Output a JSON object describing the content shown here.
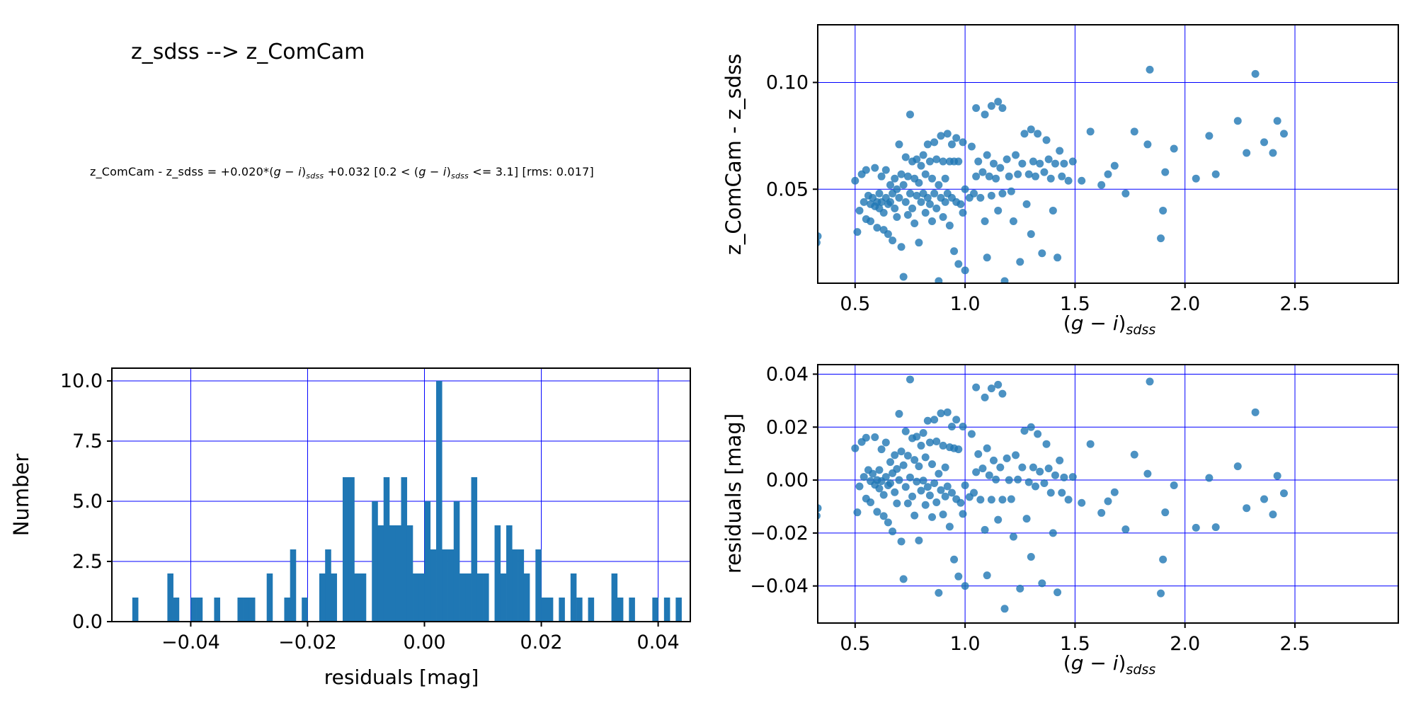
{
  "header": {
    "title": "z_sdss --> z_ComCam",
    "equation_parts": [
      [
        "n",
        "z_ComCam - z_sdss = +0.020*("
      ],
      [
        "i",
        "g − i"
      ],
      [
        "n",
        ")"
      ],
      [
        "s",
        "sdss"
      ],
      [
        "n",
        " +0.032  [0.2 < ("
      ],
      [
        "i",
        "g − i"
      ],
      [
        "n",
        ")"
      ],
      [
        "s",
        "sdss"
      ],
      [
        "n",
        " <= 3.1]  [rms: 0.017]"
      ]
    ]
  },
  "fit": {
    "slope": 0.02,
    "intercept": 0.032,
    "valid_range": [
      0.2,
      3.1
    ],
    "rms": 0.017
  },
  "colors": {
    "points": "#1f77b4",
    "bars": "#1f77b4",
    "grid": "#0000ff",
    "axis": "#000000"
  },
  "labels": {
    "color_axis_parts": [
      [
        "n",
        "("
      ],
      [
        "i",
        "g − i"
      ],
      [
        "n",
        ")"
      ],
      [
        "s",
        "sdss"
      ]
    ],
    "top_scatter_ylabel": "z_ComCam - z_sdss",
    "residual_ylabel": "residuals [mag]",
    "hist_xlabel": "residuals [mag]",
    "hist_ylabel": "Number"
  },
  "chart_data": [
    {
      "id": "dmag-vs-color-scatter",
      "type": "scatter",
      "xlabel": "(g − i)_sdss",
      "ylabel": "z_ComCam - z_sdss",
      "xlim": [
        0.33,
        2.97
      ],
      "ylim": [
        0.006,
        0.127
      ],
      "xticks": [
        0.5,
        1.0,
        1.5,
        2.0,
        2.5
      ],
      "xtick_labels": [
        "0.5",
        "1.0",
        "1.5",
        "2.0",
        "2.5"
      ],
      "yticks": [
        0.05,
        0.1
      ],
      "ytick_labels": [
        "0.05",
        "0.10"
      ],
      "grid": true,
      "points": [
        [
          0.325,
          0.025
        ],
        [
          0.33,
          0.028
        ],
        [
          0.5,
          0.054
        ],
        [
          0.51,
          0.03
        ],
        [
          0.52,
          0.04
        ],
        [
          0.53,
          0.057
        ],
        [
          0.54,
          0.044
        ],
        [
          0.55,
          0.036
        ],
        [
          0.55,
          0.059
        ],
        [
          0.56,
          0.047
        ],
        [
          0.57,
          0.043
        ],
        [
          0.57,
          0.035
        ],
        [
          0.58,
          0.046
        ],
        [
          0.59,
          0.042
        ],
        [
          0.59,
          0.06
        ],
        [
          0.6,
          0.044
        ],
        [
          0.6,
          0.032
        ],
        [
          0.61,
          0.048
        ],
        [
          0.61,
          0.041
        ],
        [
          0.62,
          0.056
        ],
        [
          0.62,
          0.044
        ],
        [
          0.63,
          0.039
        ],
        [
          0.63,
          0.031
        ],
        [
          0.64,
          0.059
        ],
        [
          0.64,
          0.046
        ],
        [
          0.65,
          0.043
        ],
        [
          0.65,
          0.029
        ],
        [
          0.66,
          0.052
        ],
        [
          0.66,
          0.044
        ],
        [
          0.67,
          0.048
        ],
        [
          0.67,
          0.026
        ],
        [
          0.68,
          0.055
        ],
        [
          0.68,
          0.041
        ],
        [
          0.69,
          0.05
        ],
        [
          0.69,
          0.037
        ],
        [
          0.7,
          0.071
        ],
        [
          0.7,
          0.046
        ],
        [
          0.71,
          0.057
        ],
        [
          0.71,
          0.023
        ],
        [
          0.72,
          0.052
        ],
        [
          0.72,
          0.009
        ],
        [
          0.73,
          0.065
        ],
        [
          0.73,
          0.044
        ],
        [
          0.74,
          0.056
        ],
        [
          0.74,
          0.038
        ],
        [
          0.75,
          0.085
        ],
        [
          0.75,
          0.048
        ],
        [
          0.76,
          0.063
        ],
        [
          0.76,
          0.041
        ],
        [
          0.77,
          0.055
        ],
        [
          0.77,
          0.034
        ],
        [
          0.78,
          0.064
        ],
        [
          0.78,
          0.047
        ],
        [
          0.79,
          0.053
        ],
        [
          0.79,
          0.025
        ],
        [
          0.8,
          0.061
        ],
        [
          0.8,
          0.044
        ],
        [
          0.81,
          0.066
        ],
        [
          0.81,
          0.048
        ],
        [
          0.82,
          0.057
        ],
        [
          0.82,
          0.039
        ],
        [
          0.83,
          0.071
        ],
        [
          0.83,
          0.046
        ],
        [
          0.84,
          0.063
        ],
        [
          0.84,
          0.043
        ],
        [
          0.85,
          0.055
        ],
        [
          0.85,
          0.035
        ],
        [
          0.86,
          0.072
        ],
        [
          0.86,
          0.048
        ],
        [
          0.87,
          0.064
        ],
        [
          0.87,
          0.041
        ],
        [
          0.88,
          0.052
        ],
        [
          0.88,
          0.007
        ],
        [
          0.89,
          0.075
        ],
        [
          0.89,
          0.046
        ],
        [
          0.9,
          0.063
        ],
        [
          0.9,
          0.037
        ],
        [
          0.91,
          0.055
        ],
        [
          0.91,
          0.044
        ],
        [
          0.92,
          0.076
        ],
        [
          0.92,
          0.048
        ],
        [
          0.93,
          0.063
        ],
        [
          0.93,
          0.033
        ],
        [
          0.94,
          0.071
        ],
        [
          0.94,
          0.046
        ],
        [
          0.95,
          0.063
        ],
        [
          0.95,
          0.021
        ],
        [
          0.96,
          0.074
        ],
        [
          0.96,
          0.044
        ],
        [
          0.97,
          0.063
        ],
        [
          0.97,
          0.015
        ],
        [
          0.98,
          0.043
        ],
        [
          0.99,
          0.072
        ],
        [
          0.99,
          0.039
        ],
        [
          1.0,
          0.05
        ],
        [
          1.0,
          0.012
        ],
        [
          1.02,
          0.046
        ],
        [
          1.03,
          0.07
        ],
        [
          1.04,
          0.048
        ],
        [
          1.05,
          0.088
        ],
        [
          1.05,
          0.056
        ],
        [
          1.06,
          0.063
        ],
        [
          1.07,
          0.046
        ],
        [
          1.08,
          0.058
        ],
        [
          1.09,
          0.085
        ],
        [
          1.09,
          0.035
        ],
        [
          1.1,
          0.066
        ],
        [
          1.1,
          0.018
        ],
        [
          1.11,
          0.056
        ],
        [
          1.12,
          0.089
        ],
        [
          1.12,
          0.047
        ],
        [
          1.13,
          0.062
        ],
        [
          1.14,
          0.055
        ],
        [
          1.15,
          0.091
        ],
        [
          1.15,
          0.04
        ],
        [
          1.16,
          0.06
        ],
        [
          1.17,
          0.088
        ],
        [
          1.17,
          0.048
        ],
        [
          1.18,
          0.007
        ],
        [
          1.19,
          0.064
        ],
        [
          1.2,
          0.056
        ],
        [
          1.21,
          0.049
        ],
        [
          1.22,
          0.035
        ],
        [
          1.23,
          0.066
        ],
        [
          1.24,
          0.057
        ],
        [
          1.25,
          0.016
        ],
        [
          1.26,
          0.062
        ],
        [
          1.27,
          0.076
        ],
        [
          1.28,
          0.043
        ],
        [
          1.29,
          0.057
        ],
        [
          1.3,
          0.078
        ],
        [
          1.3,
          0.029
        ],
        [
          1.31,
          0.063
        ],
        [
          1.32,
          0.056
        ],
        [
          1.33,
          0.076
        ],
        [
          1.34,
          0.062
        ],
        [
          1.35,
          0.02
        ],
        [
          1.36,
          0.058
        ],
        [
          1.37,
          0.073
        ],
        [
          1.38,
          0.064
        ],
        [
          1.39,
          0.055
        ],
        [
          1.4,
          0.04
        ],
        [
          1.41,
          0.062
        ],
        [
          1.42,
          0.018
        ],
        [
          1.43,
          0.068
        ],
        [
          1.44,
          0.056
        ],
        [
          1.45,
          0.062
        ],
        [
          1.47,
          0.054
        ],
        [
          1.49,
          0.063
        ],
        [
          1.53,
          0.054
        ],
        [
          1.57,
          0.077
        ],
        [
          1.62,
          0.052
        ],
        [
          1.65,
          0.057
        ],
        [
          1.68,
          0.061
        ],
        [
          1.73,
          0.048
        ],
        [
          1.77,
          0.077
        ],
        [
          1.83,
          0.071
        ],
        [
          1.84,
          0.106
        ],
        [
          1.89,
          0.027
        ],
        [
          1.9,
          0.04
        ],
        [
          1.91,
          0.058
        ],
        [
          1.95,
          0.069
        ],
        [
          2.05,
          0.055
        ],
        [
          2.11,
          0.075
        ],
        [
          2.14,
          0.057
        ],
        [
          2.24,
          0.082
        ],
        [
          2.28,
          0.067
        ],
        [
          2.32,
          0.104
        ],
        [
          2.36,
          0.072
        ],
        [
          2.4,
          0.067
        ],
        [
          2.42,
          0.082
        ],
        [
          2.45,
          0.076
        ]
      ]
    },
    {
      "id": "residual-histogram",
      "type": "bar",
      "xlabel": "residuals [mag]",
      "ylabel": "Number",
      "xlim": [
        -0.0535,
        0.0455
      ],
      "ylim": [
        0,
        10.53
      ],
      "xticks": [
        -0.04,
        -0.02,
        0.0,
        0.02,
        0.04
      ],
      "xtick_labels": [
        "−0.04",
        "−0.02",
        "0.00",
        "0.02",
        "0.04"
      ],
      "yticks": [
        0,
        2.5,
        5.0,
        7.5,
        10.0
      ],
      "ytick_labels": [
        "0.0",
        "2.5",
        "5.0",
        "7.5",
        "10.0"
      ],
      "grid": true,
      "bin_width": 0.001,
      "bars": [
        [
          -0.05,
          1
        ],
        [
          -0.044,
          2
        ],
        [
          -0.043,
          1
        ],
        [
          -0.04,
          1
        ],
        [
          -0.039,
          1
        ],
        [
          -0.036,
          1
        ],
        [
          -0.032,
          1
        ],
        [
          -0.031,
          1
        ],
        [
          -0.03,
          1
        ],
        [
          -0.027,
          2
        ],
        [
          -0.024,
          1
        ],
        [
          -0.023,
          3
        ],
        [
          -0.021,
          1
        ],
        [
          -0.018,
          2
        ],
        [
          -0.017,
          3
        ],
        [
          -0.016,
          2
        ],
        [
          -0.014,
          6
        ],
        [
          -0.013,
          6
        ],
        [
          -0.012,
          2
        ],
        [
          -0.011,
          2
        ],
        [
          -0.009,
          5
        ],
        [
          -0.008,
          4
        ],
        [
          -0.007,
          6
        ],
        [
          -0.006,
          4
        ],
        [
          -0.005,
          4
        ],
        [
          -0.004,
          6
        ],
        [
          -0.003,
          4
        ],
        [
          -0.002,
          2
        ],
        [
          -0.001,
          2
        ],
        [
          0.0,
          5
        ],
        [
          0.001,
          3
        ],
        [
          0.002,
          10
        ],
        [
          0.003,
          3
        ],
        [
          0.004,
          3
        ],
        [
          0.005,
          5
        ],
        [
          0.006,
          2
        ],
        [
          0.007,
          2
        ],
        [
          0.008,
          6
        ],
        [
          0.009,
          2
        ],
        [
          0.01,
          2
        ],
        [
          0.012,
          4
        ],
        [
          0.013,
          2
        ],
        [
          0.014,
          4
        ],
        [
          0.015,
          3
        ],
        [
          0.016,
          3
        ],
        [
          0.017,
          2
        ],
        [
          0.019,
          3
        ],
        [
          0.02,
          1
        ],
        [
          0.021,
          1
        ],
        [
          0.023,
          1
        ],
        [
          0.025,
          2
        ],
        [
          0.026,
          1
        ],
        [
          0.028,
          1
        ],
        [
          0.032,
          2
        ],
        [
          0.033,
          1
        ],
        [
          0.035,
          1
        ],
        [
          0.039,
          1
        ],
        [
          0.041,
          1
        ],
        [
          0.043,
          1
        ]
      ]
    },
    {
      "id": "residual-vs-color-scatter",
      "type": "scatter",
      "xlabel": "(g − i)_sdss",
      "ylabel": "residuals [mag]",
      "xlim": [
        0.33,
        2.97
      ],
      "ylim": [
        -0.054,
        0.0436
      ],
      "xticks": [
        0.5,
        1.0,
        1.5,
        2.0,
        2.5
      ],
      "xtick_labels": [
        "0.5",
        "1.0",
        "1.5",
        "2.0",
        "2.5"
      ],
      "yticks": [
        -0.04,
        -0.02,
        0.0,
        0.02,
        0.04
      ],
      "ytick_labels": [
        "−0.04",
        "−0.02",
        "0.00",
        "0.02",
        "0.04"
      ],
      "grid": true,
      "points": "derived",
      "derivation": "y = top_scatter_y − (fit.slope·x + fit.intercept)"
    }
  ]
}
